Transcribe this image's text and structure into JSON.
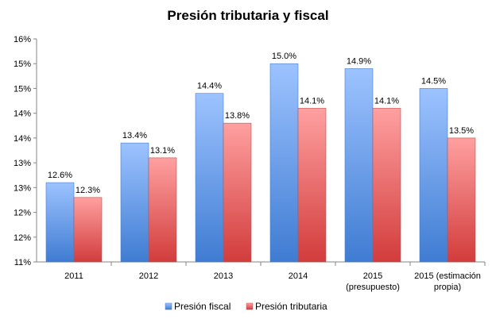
{
  "colors": {
    "fiscal_top": "#9DC3FF",
    "fiscal_bottom": "#3F7CD2",
    "fiscal_edge": "#4A7EC3",
    "tributaria_top": "#FFA0A0",
    "tributaria_bottom": "#D23C3C",
    "tributaria_edge": "#C0504D",
    "axis": "#868686",
    "gridline": "#D9D9D9"
  },
  "chart_data": {
    "type": "bar",
    "title": "Presión tributaria y fiscal",
    "categories": [
      [
        "2011"
      ],
      [
        "2012"
      ],
      [
        "2013"
      ],
      [
        "2014"
      ],
      [
        "2015",
        "(presupuesto)"
      ],
      [
        "2015 (estimación",
        "propia)"
      ]
    ],
    "series": [
      {
        "name": "Presión fiscal",
        "values": [
          12.6,
          13.4,
          14.4,
          15.0,
          14.9,
          14.5
        ],
        "labels": [
          "12.6%",
          "13.4%",
          "14.4%",
          "15.0%",
          "14.9%",
          "14.5%"
        ]
      },
      {
        "name": "Presión tributaria",
        "values": [
          12.3,
          13.1,
          13.8,
          14.1,
          14.1,
          13.5
        ],
        "labels": [
          "12.3%",
          "13.1%",
          "13.8%",
          "14.1%",
          "14.1%",
          "13.5%"
        ]
      }
    ],
    "ylim": [
      11.0,
      15.5
    ],
    "yticks": [
      11.0,
      11.5,
      12.0,
      12.5,
      13.0,
      13.5,
      14.0,
      14.5,
      15.0,
      15.5
    ],
    "ytick_labels": [
      "11%",
      "12%",
      "12%",
      "13%",
      "13%",
      "14%",
      "14%",
      "15%",
      "15%",
      "16%"
    ],
    "grid": false,
    "legend_position": "bottom"
  }
}
